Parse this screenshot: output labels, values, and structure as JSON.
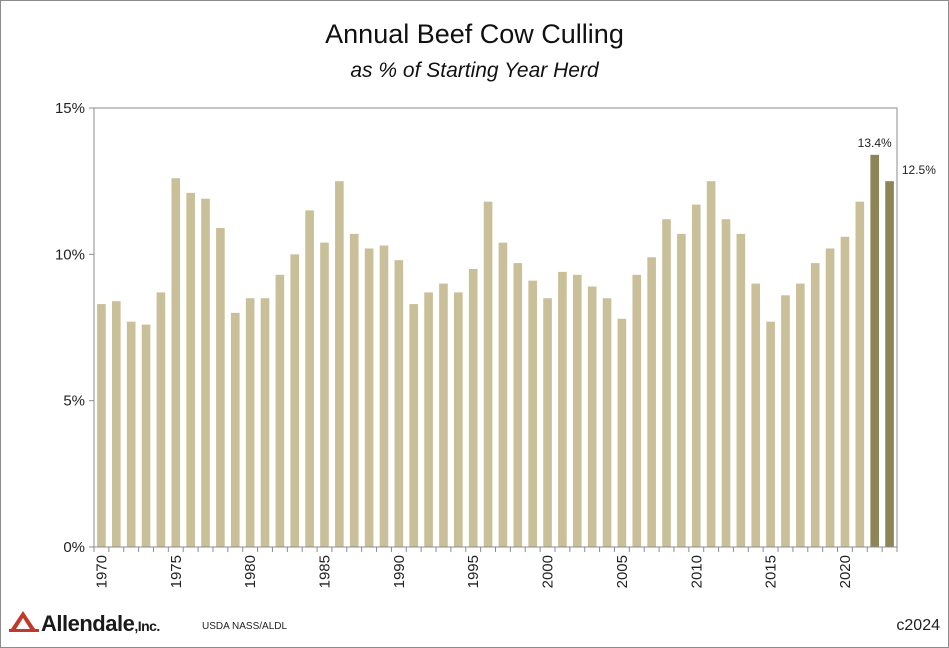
{
  "chart_data": {
    "type": "bar",
    "title": "Annual Beef Cow Culling",
    "subtitle": "as % of Starting Year Herd",
    "xlabel": "",
    "ylabel": "",
    "ylim": [
      0,
      15
    ],
    "yticks": [
      "0%",
      "5%",
      "10%",
      "15%"
    ],
    "yticks_values": [
      0,
      5,
      10,
      15
    ],
    "x_tick_labels": [
      "1970",
      "1975",
      "1980",
      "1985",
      "1990",
      "1995",
      "2000",
      "2005",
      "2010",
      "2015",
      "2020"
    ],
    "grid": false,
    "legend": "none",
    "colors": {
      "default": "#c9bf98",
      "highlight": "#8d8557"
    },
    "highlight_years": [
      2022,
      2023
    ],
    "categories": [
      1970,
      1971,
      1972,
      1973,
      1974,
      1975,
      1976,
      1977,
      1978,
      1979,
      1980,
      1981,
      1982,
      1983,
      1984,
      1985,
      1986,
      1987,
      1988,
      1989,
      1990,
      1991,
      1992,
      1993,
      1994,
      1995,
      1996,
      1997,
      1998,
      1999,
      2000,
      2001,
      2002,
      2003,
      2004,
      2005,
      2006,
      2007,
      2008,
      2009,
      2010,
      2011,
      2012,
      2013,
      2014,
      2015,
      2016,
      2017,
      2018,
      2019,
      2020,
      2021,
      2022,
      2023
    ],
    "values": [
      8.3,
      8.4,
      7.7,
      7.6,
      8.7,
      12.6,
      12.1,
      11.9,
      10.9,
      8.0,
      8.5,
      8.5,
      9.3,
      10.0,
      11.5,
      10.4,
      12.5,
      10.7,
      10.2,
      10.3,
      9.8,
      8.3,
      8.7,
      9.0,
      8.7,
      9.5,
      11.8,
      10.4,
      9.7,
      9.1,
      8.5,
      9.4,
      9.3,
      8.9,
      8.5,
      7.8,
      9.3,
      9.9,
      11.2,
      10.7,
      11.7,
      12.5,
      11.2,
      10.7,
      9.0,
      7.7,
      8.6,
      9.0,
      9.7,
      10.2,
      10.6,
      11.8,
      13.4,
      12.5
    ],
    "data_labels": [
      {
        "year": 2022,
        "text": "13.4%"
      },
      {
        "year": 2023,
        "text": "12.5%"
      }
    ]
  },
  "footer": {
    "logo_text": "Allendale",
    "logo_suffix": ",Inc.",
    "source": "USDA NASS/ALDL",
    "copyright": "c2024"
  }
}
